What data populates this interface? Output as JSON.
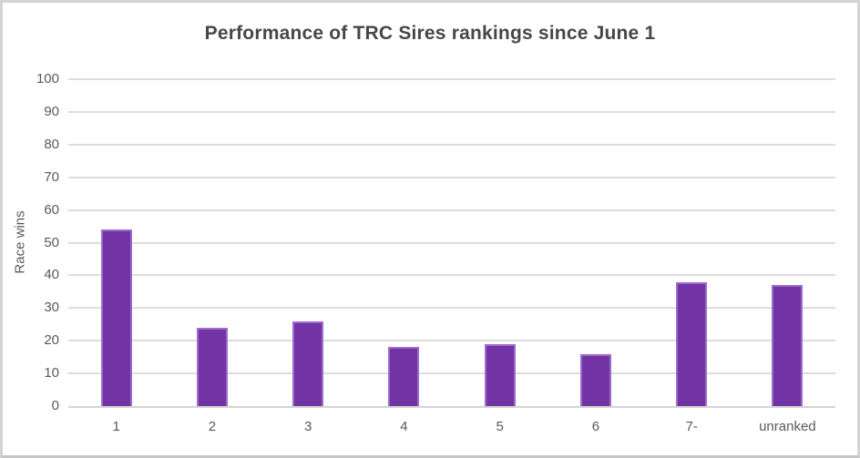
{
  "chart_data": {
    "type": "bar",
    "title": "Performance of TRC Sires rankings since June 1",
    "xlabel": "",
    "ylabel": "Race wins",
    "categories": [
      "1",
      "2",
      "3",
      "4",
      "5",
      "6",
      "7-",
      "unranked"
    ],
    "values": [
      54,
      24,
      26,
      18,
      19,
      16,
      38,
      37
    ],
    "ylim": [
      0,
      100
    ],
    "yticks": [
      0,
      10,
      20,
      30,
      40,
      50,
      60,
      70,
      80,
      90,
      100
    ],
    "grid": true,
    "legend": "none",
    "colors": {
      "bar_fill": "#7233a4",
      "bar_border": "#9c6bcd",
      "gridline": "#dcdcdc",
      "axis_line": "#d4d4d4",
      "axis_text": "#595959",
      "title_text": "#474747",
      "frame_border": "#d4d4d4",
      "background": "#ffffff"
    }
  }
}
